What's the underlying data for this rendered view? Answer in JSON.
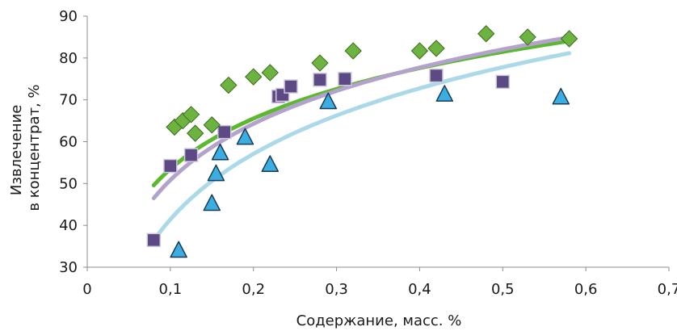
{
  "chart_data": {
    "type": "scatter",
    "title": "",
    "xlabel": "Содержание, масс. %",
    "ylabel_line1": "Извлечение",
    "ylabel_line2": "в концентрат, %",
    "xlim": [
      0,
      0.7
    ],
    "ylim": [
      30,
      90
    ],
    "xticks": [
      0,
      0.1,
      0.2,
      0.3,
      0.4,
      0.5,
      0.6,
      0.7
    ],
    "xtick_labels": [
      "0",
      "0,1",
      "0,2",
      "0,3",
      "0,4",
      "0,5",
      "0,6",
      "0,7"
    ],
    "yticks": [
      30,
      40,
      50,
      60,
      70,
      80,
      90
    ],
    "ytick_labels": [
      "30",
      "40",
      "50",
      "60",
      "70",
      "80",
      "90"
    ],
    "grid": false,
    "legend": false,
    "series": [
      {
        "marker": "diamond",
        "color": "#6db33f",
        "trend_color": "#5cb82e",
        "trend": {
          "a": 93.53,
          "b": 17.4
        },
        "points": [
          [
            0.105,
            63.5
          ],
          [
            0.115,
            65.0
          ],
          [
            0.125,
            66.5
          ],
          [
            0.13,
            62.0
          ],
          [
            0.15,
            64.0
          ],
          [
            0.17,
            73.5
          ],
          [
            0.2,
            75.5
          ],
          [
            0.22,
            76.5
          ],
          [
            0.28,
            78.8
          ],
          [
            0.32,
            81.7
          ],
          [
            0.4,
            81.7
          ],
          [
            0.42,
            82.3
          ],
          [
            0.48,
            85.8
          ],
          [
            0.53,
            85.0
          ],
          [
            0.58,
            84.6
          ]
        ]
      },
      {
        "marker": "square",
        "color": "#5d4a85",
        "trend_color": "#b3a2cc",
        "trend": {
          "a": 95.49,
          "b": 19.4
        },
        "points": [
          [
            0.08,
            36.5
          ],
          [
            0.1,
            54.2
          ],
          [
            0.125,
            56.8
          ],
          [
            0.165,
            62.3
          ],
          [
            0.23,
            70.8
          ],
          [
            0.235,
            71.2
          ],
          [
            0.245,
            73.2
          ],
          [
            0.28,
            74.8
          ],
          [
            0.31,
            75.0
          ],
          [
            0.42,
            75.8
          ],
          [
            0.5,
            74.3
          ]
        ]
      },
      {
        "marker": "triangle",
        "color": "#3aaee0",
        "trend_color": "#abd9e8",
        "trend": {
          "a": 93.46,
          "b": 22.6
        },
        "points": [
          [
            0.11,
            34.0
          ],
          [
            0.15,
            45.2
          ],
          [
            0.155,
            52.3
          ],
          [
            0.16,
            57.3
          ],
          [
            0.19,
            61.0
          ],
          [
            0.22,
            54.5
          ],
          [
            0.29,
            69.5
          ],
          [
            0.43,
            71.3
          ],
          [
            0.57,
            70.6
          ]
        ]
      }
    ]
  }
}
